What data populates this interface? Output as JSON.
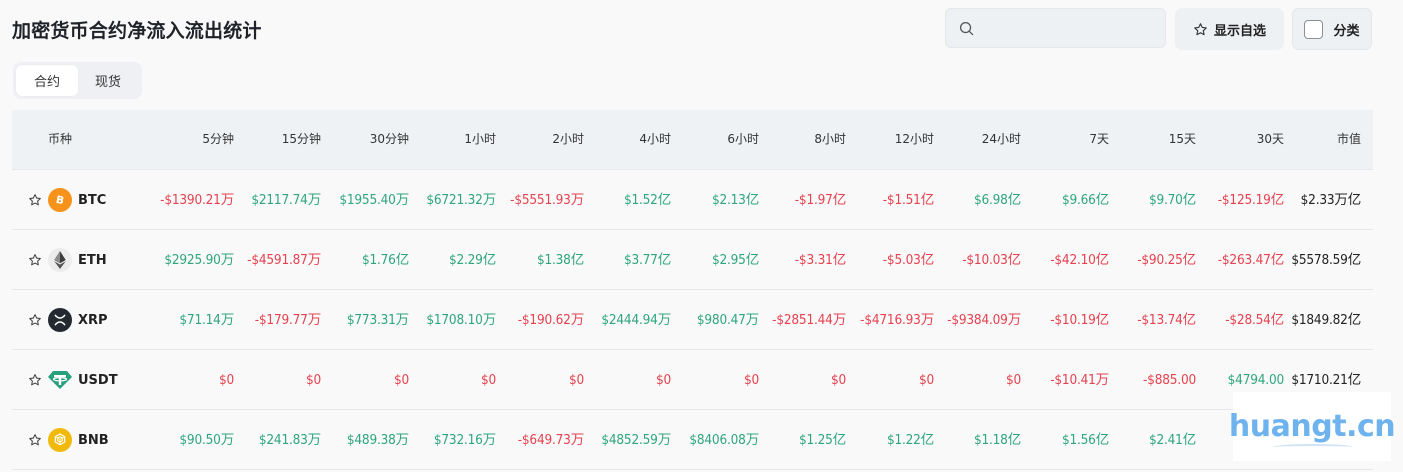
{
  "header": {
    "title": "加密货币合约净流入流出统计"
  },
  "tabs": [
    {
      "label": "合约",
      "active": true
    },
    {
      "label": "现货",
      "active": false
    }
  ],
  "toolbar": {
    "search_placeholder": "",
    "search_icon": "search-icon",
    "favorites_label": "显示自选",
    "favorites_icon": "star-outline-icon",
    "category_label": "分类",
    "category_checked": false
  },
  "colors": {
    "positive": "#2ea57e",
    "negative": "#e5414f",
    "neutral": "#222222",
    "header_bg": "#eff2f5"
  },
  "table": {
    "columns": [
      "币种",
      "5分钟",
      "15分钟",
      "30分钟",
      "1小时",
      "2小时",
      "4小时",
      "6小时",
      "8小时",
      "12小时",
      "24小时",
      "7天",
      "15天",
      "30天",
      "市值"
    ],
    "rows": [
      {
        "symbol": "BTC",
        "icon": "bitcoin-icon",
        "values": [
          "-$1390.21万",
          "$2117.74万",
          "$1955.40万",
          "$6721.32万",
          "-$5551.93万",
          "$1.52亿",
          "$2.13亿",
          "-$1.97亿",
          "-$1.51亿",
          "$6.98亿",
          "$9.66亿",
          "$9.70亿",
          "-$125.19亿"
        ],
        "signs": [
          "neg",
          "pos",
          "pos",
          "pos",
          "neg",
          "pos",
          "pos",
          "neg",
          "neg",
          "pos",
          "pos",
          "pos",
          "neg"
        ],
        "market_cap": "$2.33万亿"
      },
      {
        "symbol": "ETH",
        "icon": "ethereum-icon",
        "values": [
          "$2925.90万",
          "-$4591.87万",
          "$1.76亿",
          "$2.29亿",
          "$1.38亿",
          "$3.77亿",
          "$2.95亿",
          "-$3.31亿",
          "-$5.03亿",
          "-$10.03亿",
          "-$42.10亿",
          "-$90.25亿",
          "-$263.47亿"
        ],
        "signs": [
          "pos",
          "neg",
          "pos",
          "pos",
          "pos",
          "pos",
          "pos",
          "neg",
          "neg",
          "neg",
          "neg",
          "neg",
          "neg"
        ],
        "market_cap": "$5578.59亿"
      },
      {
        "symbol": "XRP",
        "icon": "xrp-icon",
        "values": [
          "$71.14万",
          "-$179.77万",
          "$773.31万",
          "$1708.10万",
          "-$190.62万",
          "$2444.94万",
          "$980.47万",
          "-$2851.44万",
          "-$4716.93万",
          "-$9384.09万",
          "-$10.19亿",
          "-$13.74亿",
          "-$28.54亿"
        ],
        "signs": [
          "pos",
          "neg",
          "pos",
          "pos",
          "neg",
          "pos",
          "pos",
          "neg",
          "neg",
          "neg",
          "neg",
          "neg",
          "neg"
        ],
        "market_cap": "$1849.82亿"
      },
      {
        "symbol": "USDT",
        "icon": "tether-icon",
        "values": [
          "$0",
          "$0",
          "$0",
          "$0",
          "$0",
          "$0",
          "$0",
          "$0",
          "$0",
          "$0",
          "-$10.41万",
          "-$885.00",
          "$4794.00"
        ],
        "signs": [
          "neg",
          "neg",
          "neg",
          "neg",
          "neg",
          "neg",
          "neg",
          "neg",
          "neg",
          "neg",
          "neg",
          "neg",
          "pos"
        ],
        "market_cap": "$1710.21亿"
      },
      {
        "symbol": "BNB",
        "icon": "bnb-icon",
        "values": [
          "$90.50万",
          "$241.83万",
          "$489.38万",
          "$732.16万",
          "-$649.73万",
          "$4852.59万",
          "$8406.08万",
          "$1.25亿",
          "$1.22亿",
          "$1.18亿",
          "$1.56亿",
          "$2.41亿",
          "-"
        ],
        "signs": [
          "pos",
          "pos",
          "pos",
          "pos",
          "neg",
          "pos",
          "pos",
          "pos",
          "pos",
          "pos",
          "pos",
          "pos",
          "neg"
        ],
        "market_cap": ""
      }
    ]
  },
  "watermark": {
    "text": "huangt.cn"
  }
}
